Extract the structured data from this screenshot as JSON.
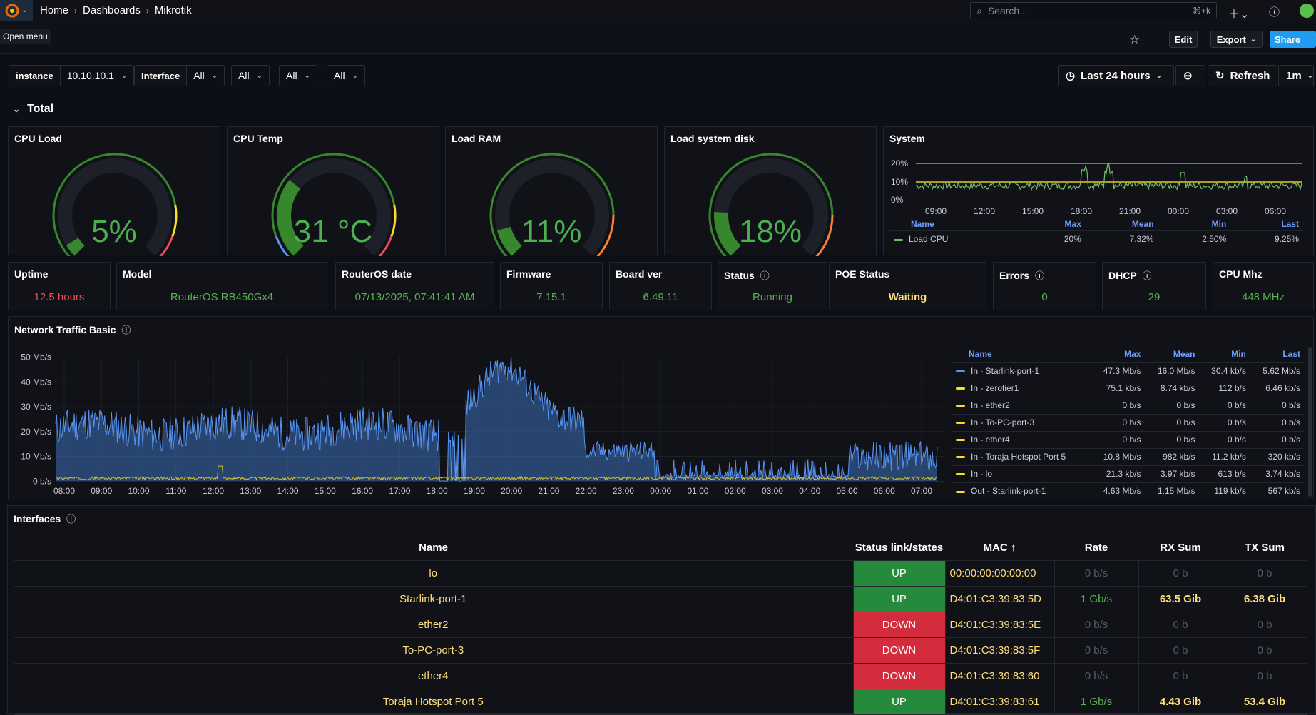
{
  "topbar": {
    "crumbs": [
      "Home",
      "Dashboards",
      "Mikrotik"
    ],
    "search_placeholder": "Search...",
    "search_shortcut": "⌘+k",
    "tooltip": "Open menu"
  },
  "toolbar": {
    "edit": "Edit",
    "export": "Export",
    "share": "Share"
  },
  "vars": [
    {
      "label": "instance",
      "value": "10.10.10.1"
    },
    {
      "label": "Interface",
      "value": "All"
    },
    {
      "label": "",
      "value": "All"
    },
    {
      "label": "",
      "value": "All"
    },
    {
      "label": "",
      "value": "All"
    }
  ],
  "time": {
    "range": "Last 24 hours",
    "refresh": "Refresh",
    "interval": "1m"
  },
  "row": {
    "title": "Total"
  },
  "gauges": [
    {
      "title": "CPU Load",
      "value": "5%",
      "level": 0.05
    },
    {
      "title": "CPU Temp",
      "value": "31 °C",
      "level": 0.31
    },
    {
      "title": "Load RAM",
      "value": "11%",
      "level": 0.11
    },
    {
      "title": "Load system disk",
      "value": "18%",
      "level": 0.18
    }
  ],
  "system": {
    "title": "System",
    "yticks": [
      "20%",
      "10%",
      "0%"
    ],
    "xticks": [
      "09:00",
      "12:00",
      "15:00",
      "18:00",
      "21:00",
      "00:00",
      "03:00",
      "06:00"
    ],
    "legend_headers": [
      "Name",
      "Max",
      "Mean",
      "Min",
      "Last"
    ],
    "legend_rows": [
      {
        "name": "Load CPU",
        "max": "20%",
        "mean": "7.32%",
        "min": "2.50%",
        "last": "9.25%"
      }
    ]
  },
  "stats": [
    {
      "title": "Uptime",
      "value": "12.5 hours",
      "color": "#f2495c"
    },
    {
      "title": "Model",
      "value": "RouterOS RB450Gx4",
      "color": "#56b34f"
    },
    {
      "title": "RouterOS date",
      "value": "07/13/2025, 07:41:41 AM",
      "color": "#56b34f"
    },
    {
      "title": "Firmware",
      "value": "7.15.1",
      "color": "#56b34f"
    },
    {
      "title": "Board ver",
      "value": "6.49.11",
      "color": "#56b34f"
    },
    {
      "title": "Status",
      "value": "Running",
      "color": "#56b34f"
    },
    {
      "title": "POE Status",
      "value": "Waiting",
      "color": "#ffde7a"
    },
    {
      "title": "Errors",
      "value": "0",
      "color": "#56b34f"
    },
    {
      "title": "DHCP",
      "value": "29",
      "color": "#56b34f"
    },
    {
      "title": "CPU Mhz",
      "value": "448 MHz",
      "color": "#56b34f"
    }
  ],
  "traffic": {
    "title": "Network Traffic Basic",
    "yticks": [
      "50 Mb/s",
      "40 Mb/s",
      "30 Mb/s",
      "20 Mb/s",
      "10 Mb/s",
      "0 b/s"
    ],
    "xticks": [
      "08:00",
      "09:00",
      "10:00",
      "11:00",
      "12:00",
      "13:00",
      "14:00",
      "15:00",
      "16:00",
      "17:00",
      "18:00",
      "19:00",
      "20:00",
      "21:00",
      "22:00",
      "23:00",
      "00:00",
      "01:00",
      "02:00",
      "03:00",
      "04:00",
      "05:00",
      "06:00",
      "07:00"
    ],
    "legend_headers": [
      "Name",
      "Max",
      "Mean",
      "Min",
      "Last"
    ],
    "legend_rows": [
      {
        "name": "In - Starlink-port-1",
        "max": "47.3 Mb/s",
        "mean": "16.0 Mb/s",
        "min": "30.4 kb/s",
        "last": "5.62 Mb/s",
        "color": "#5794f2"
      },
      {
        "name": "In - zerotier1",
        "max": "75.1 kb/s",
        "mean": "8.74 kb/s",
        "min": "112 b/s",
        "last": "6.46 kb/s",
        "color": "#fade2a"
      },
      {
        "name": "In - ether2",
        "max": "0 b/s",
        "mean": "0 b/s",
        "min": "0 b/s",
        "last": "0 b/s",
        "color": "#fade2a"
      },
      {
        "name": "In - To-PC-port-3",
        "max": "0 b/s",
        "mean": "0 b/s",
        "min": "0 b/s",
        "last": "0 b/s",
        "color": "#fade2a"
      },
      {
        "name": "In - ether4",
        "max": "0 b/s",
        "mean": "0 b/s",
        "min": "0 b/s",
        "last": "0 b/s",
        "color": "#fade2a"
      },
      {
        "name": "In - Toraja Hotspot Port 5",
        "max": "10.8 Mb/s",
        "mean": "982 kb/s",
        "min": "11.2 kb/s",
        "last": "320 kb/s",
        "color": "#fade2a"
      },
      {
        "name": "In - lo",
        "max": "21.3 kb/s",
        "mean": "3.97 kb/s",
        "min": "613 b/s",
        "last": "3.74 kb/s",
        "color": "#fade2a"
      },
      {
        "name": "Out - Starlink-port-1",
        "max": "4.63 Mb/s",
        "mean": "1.15 Mb/s",
        "min": "119 kb/s",
        "last": "567 kb/s",
        "color": "#fade2a"
      }
    ]
  },
  "interfaces": {
    "title": "Interfaces",
    "headers": [
      "Name",
      "Status link/states",
      "MAC",
      "Rate",
      "RX Sum",
      "TX Sum"
    ],
    "rows": [
      {
        "name": "lo",
        "status": "UP",
        "mac": "00:00:00:00:00:00",
        "rate": "0 b/s",
        "rx": "0 b",
        "tx": "0 b"
      },
      {
        "name": "Starlink-port-1",
        "status": "UP",
        "mac": "D4:01:C3:39:83:5D",
        "rate": "1 Gb/s",
        "rx": "63.5 Gib",
        "tx": "6.38 Gib"
      },
      {
        "name": "ether2",
        "status": "DOWN",
        "mac": "D4:01:C3:39:83:5E",
        "rate": "0 b/s",
        "rx": "0 b",
        "tx": "0 b"
      },
      {
        "name": "To-PC-port-3",
        "status": "DOWN",
        "mac": "D4:01:C3:39:83:5F",
        "rate": "0 b/s",
        "rx": "0 b",
        "tx": "0 b"
      },
      {
        "name": "ether4",
        "status": "DOWN",
        "mac": "D4:01:C3:39:83:60",
        "rate": "0 b/s",
        "rx": "0 b",
        "tx": "0 b"
      },
      {
        "name": "Toraja Hotspot Port 5",
        "status": "UP",
        "mac": "D4:01:C3:39:83:61",
        "rate": "1 Gb/s",
        "rx": "4.43 Gib",
        "tx": "53.4 Gib"
      }
    ]
  }
}
